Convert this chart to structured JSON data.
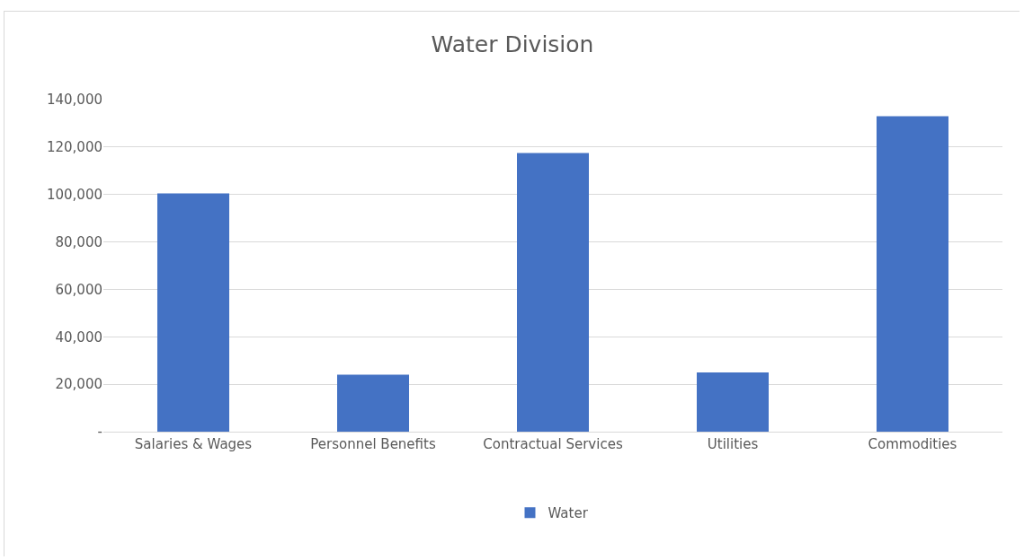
{
  "chart_data": {
    "type": "bar",
    "title": "Water Division",
    "categories": [
      "Salaries & Wages",
      "Personnel Benefits",
      "Contractual Services",
      "Utilities",
      "Commodities"
    ],
    "series": [
      {
        "name": "Water",
        "color": "#4472c4",
        "values": [
          100500,
          24000,
          117500,
          25000,
          133000
        ]
      }
    ],
    "ylim": [
      0,
      140000
    ],
    "yticks": [
      {
        "value": 0,
        "label": "-"
      },
      {
        "value": 20000,
        "label": "20,000"
      },
      {
        "value": 40000,
        "label": "40,000"
      },
      {
        "value": 60000,
        "label": "60,000"
      },
      {
        "value": 80000,
        "label": "80,000"
      },
      {
        "value": 100000,
        "label": "100,000"
      },
      {
        "value": 120000,
        "label": "120,000"
      },
      {
        "value": 140000,
        "label": "140,000"
      }
    ],
    "grid": "y",
    "legend": "bottom"
  }
}
